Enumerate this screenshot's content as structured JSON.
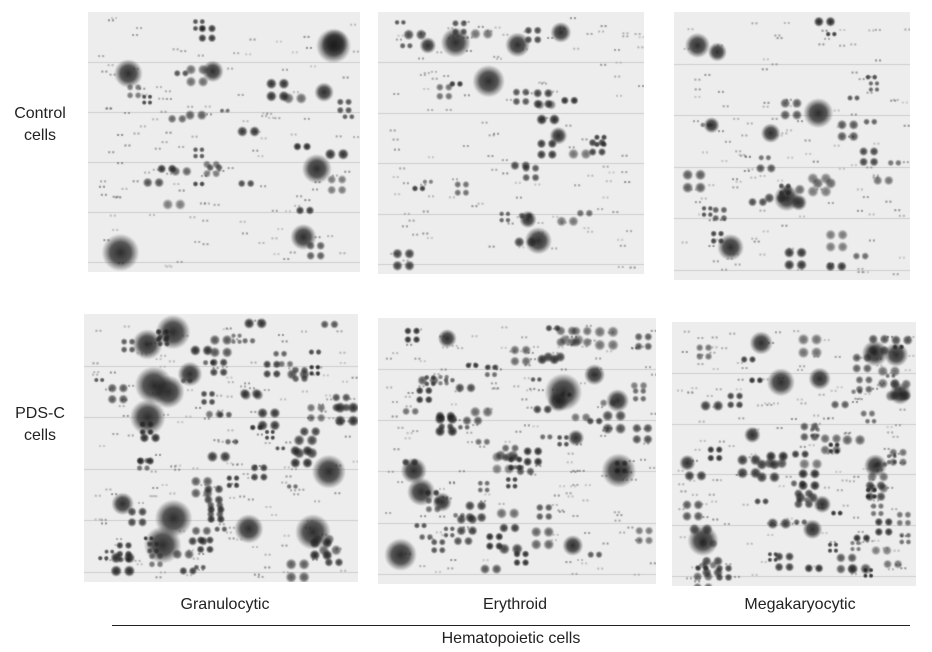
{
  "row_labels": [
    {
      "line1": "Control",
      "line2": "cells"
    },
    {
      "line1": "PDS-C",
      "line2": "cells"
    }
  ],
  "column_labels": [
    "Granulocytic",
    "Erythroid",
    "Megakaryocytic"
  ],
  "group_label": "Hematopoietic cells",
  "panels": [
    {
      "row": "Control cells",
      "column": "Granulocytic"
    },
    {
      "row": "Control cells",
      "column": "Erythroid"
    },
    {
      "row": "Control cells",
      "column": "Megakaryocytic"
    },
    {
      "row": "PDS-C cells",
      "column": "Granulocytic"
    },
    {
      "row": "PDS-C cells",
      "column": "Erythroid"
    },
    {
      "row": "PDS-C cells",
      "column": "Megakaryocytic"
    }
  ]
}
